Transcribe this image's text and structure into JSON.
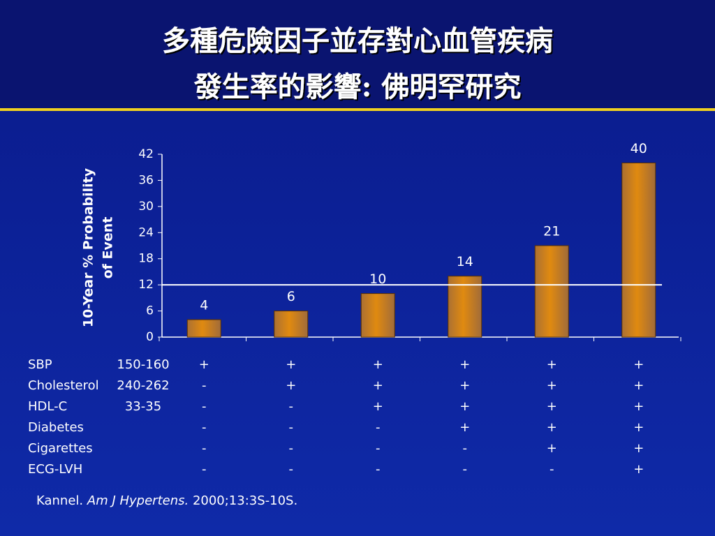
{
  "chart_data": {
    "type": "bar",
    "title": [
      "多種危險因子並存對心血管疾病",
      "發生率的影響: 佛明罕研究"
    ],
    "ylabel": [
      "10-Year % Probability",
      "of Event"
    ],
    "categories": [
      null,
      null,
      null,
      null,
      null,
      null
    ],
    "values": [
      4,
      6,
      10,
      14,
      21,
      40
    ],
    "color": "#e08a10",
    "ylim": [
      0,
      42
    ],
    "yticks": [
      0,
      6,
      12,
      18,
      24,
      30,
      36,
      42
    ],
    "reference_line": 12,
    "grid": false
  },
  "risk_table": {
    "rows": [
      {
        "label": "SBP",
        "range": "150-160",
        "marks": [
          "+",
          "+",
          "+",
          "+",
          "+",
          "+"
        ]
      },
      {
        "label": "Cholesterol",
        "range": "240-262",
        "marks": [
          "-",
          "+",
          "+",
          "+",
          "+",
          "+"
        ]
      },
      {
        "label": "HDL-C",
        "range": "33-35",
        "marks": [
          "-",
          "-",
          "+",
          "+",
          "+",
          "+"
        ]
      },
      {
        "label": "Diabetes",
        "range": null,
        "marks": [
          "-",
          "-",
          "-",
          "+",
          "+",
          "+"
        ]
      },
      {
        "label": "Cigarettes",
        "range": null,
        "marks": [
          "-",
          "-",
          "-",
          "-",
          "+",
          "+"
        ]
      },
      {
        "label": "ECG-LVH",
        "range": null,
        "marks": [
          "-",
          "-",
          "-",
          "-",
          "-",
          "+"
        ]
      }
    ]
  },
  "citation": {
    "author": "Kannel.",
    "journal": "Am J Hypertens.",
    "ref": "2000;13:3S-10S."
  }
}
